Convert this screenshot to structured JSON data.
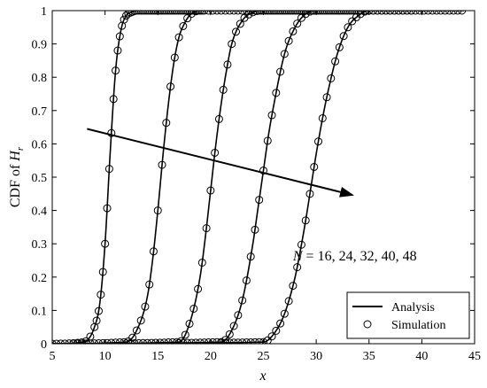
{
  "chart_data": {
    "type": "line",
    "title": "",
    "xlabel": "x",
    "ylabel_parts": {
      "prefix": "CDF of ",
      "var": "H",
      "sub": "r"
    },
    "xlim": [
      5,
      45
    ],
    "ylim": [
      0,
      1
    ],
    "xticks": [
      5,
      10,
      15,
      20,
      25,
      30,
      35,
      40,
      45
    ],
    "yticks": [
      0,
      0.1,
      0.2,
      0.3,
      0.4,
      0.5,
      0.6,
      0.7,
      0.8,
      0.9,
      1
    ],
    "ytick_labels": [
      "0",
      "0.1",
      "0.2",
      "0.3",
      "0.4",
      "0.5",
      "0.6",
      "0.7",
      "0.8",
      "0.9",
      "1"
    ],
    "grid": false,
    "legend": {
      "position": "bottom-right",
      "entries": [
        {
          "label": "Analysis",
          "marker": "line"
        },
        {
          "label": "Simulation",
          "marker": "circle"
        }
      ]
    },
    "annotation": {
      "text_parts": {
        "var": "N",
        "rest": " = 16, 24, 32, 40, 48"
      },
      "arrow_from": [
        8.3,
        0.645
      ],
      "arrow_to": [
        33.6,
        0.445
      ],
      "text_at": [
        27.8,
        0.25
      ]
    },
    "series": [
      {
        "x": [
          5,
          8,
          9,
          9.5,
          10,
          10.5,
          11,
          11.5,
          12,
          12.5,
          13,
          14,
          15,
          18
        ],
        "y": [
          0,
          0.005,
          0.05,
          0.12,
          0.3,
          0.58,
          0.82,
          0.94,
          0.985,
          0.995,
          1,
          1,
          1,
          1
        ],
        "sim_x": [
          5,
          5.4,
          5.8,
          6.2,
          6.6,
          7,
          7.4,
          7.8,
          8.2,
          8.6,
          9,
          9.2,
          9.4,
          9.6,
          9.8,
          10,
          10.2,
          10.4,
          10.6,
          10.8,
          11,
          11.2,
          11.4,
          11.6,
          11.8,
          12,
          12.2,
          12.4,
          12.6,
          12.8,
          13,
          13.2,
          13.4,
          13.6,
          13.8,
          14,
          14.2,
          14.4,
          14.6,
          14.8,
          15,
          15.2,
          15.4,
          15.6,
          15.8,
          16,
          16.2,
          16.4,
          16.6,
          16.8,
          17,
          17.2,
          17.4,
          17.6,
          17.8,
          18,
          18.2,
          18.4,
          18.6,
          18.8,
          19,
          19.2
        ]
      },
      {
        "x": [
          5,
          12,
          13,
          14,
          14.5,
          15,
          15.5,
          16,
          16.5,
          17,
          17.5,
          18,
          19,
          20,
          30
        ],
        "y": [
          0,
          0.005,
          0.04,
          0.14,
          0.25,
          0.4,
          0.57,
          0.72,
          0.84,
          0.92,
          0.96,
          0.985,
          1,
          1,
          1
        ],
        "sim_x": [
          7,
          7.4,
          7.8,
          8.2,
          8.6,
          9,
          9.4,
          9.8,
          10.2,
          10.6,
          11,
          11.4,
          11.8,
          12.2,
          12.6,
          13,
          13.4,
          13.8,
          14.2,
          14.6,
          15,
          15.4,
          15.8,
          16.2,
          16.6,
          17,
          17.4,
          17.8,
          18.2,
          18.6,
          19,
          19.4,
          19.8,
          20.2,
          20.6,
          21,
          21.4,
          21.8,
          22.2,
          22.6,
          23,
          23.4,
          23.8,
          24.2,
          24.6,
          25,
          25.4,
          25.8,
          26.2,
          26.6,
          27,
          27.4,
          27.8,
          28.2,
          28.6,
          29
        ]
      },
      {
        "x": [
          5,
          17,
          18,
          19,
          19.5,
          20,
          20.5,
          21,
          21.5,
          22,
          23,
          24,
          25,
          30
        ],
        "y": [
          0,
          0.005,
          0.06,
          0.2,
          0.32,
          0.46,
          0.6,
          0.72,
          0.82,
          0.9,
          0.97,
          0.995,
          1,
          1
        ],
        "sim_x": [
          12,
          12.4,
          12.8,
          13.2,
          13.6,
          14,
          14.4,
          14.8,
          15.2,
          15.6,
          16,
          16.4,
          16.8,
          17.2,
          17.6,
          18,
          18.4,
          18.8,
          19.2,
          19.6,
          20,
          20.4,
          20.8,
          21.2,
          21.6,
          22,
          22.4,
          22.8,
          23.2,
          23.6,
          24,
          24.4,
          24.8,
          25.2,
          25.6,
          26,
          26.4,
          26.8,
          27.2,
          27.6,
          28,
          28.4,
          28.8,
          29.2,
          29.6,
          30,
          30.4,
          30.8,
          31.2,
          31.6,
          32,
          32.4,
          32.8,
          33.2,
          33.6,
          34
        ]
      },
      {
        "x": [
          5,
          21,
          22,
          23,
          24,
          24.5,
          25,
          25.5,
          26,
          27,
          28,
          29,
          30,
          35
        ],
        "y": [
          0,
          0.005,
          0.04,
          0.13,
          0.3,
          0.41,
          0.52,
          0.63,
          0.72,
          0.87,
          0.95,
          0.99,
          1,
          1
        ],
        "sim_x": [
          17,
          17.4,
          17.8,
          18.2,
          18.6,
          19,
          19.4,
          19.8,
          20.2,
          20.6,
          21,
          21.4,
          21.8,
          22.2,
          22.6,
          23,
          23.4,
          23.8,
          24.2,
          24.6,
          25,
          25.4,
          25.8,
          26.2,
          26.6,
          27,
          27.4,
          27.8,
          28.2,
          28.6,
          29,
          29.4,
          29.8,
          30.2,
          30.6,
          31,
          31.4,
          31.8,
          32.2,
          32.6,
          33,
          33.4,
          33.8,
          34.2,
          34.6,
          35,
          35.4,
          35.8,
          36.2,
          36.6,
          37,
          37.4,
          37.8,
          38.2,
          38.6,
          39
        ]
      },
      {
        "x": [
          5,
          25,
          26,
          27,
          28,
          28.5,
          29,
          29.5,
          30,
          30.5,
          31,
          32,
          33,
          34,
          35,
          44
        ],
        "y": [
          0,
          0.005,
          0.03,
          0.09,
          0.2,
          0.28,
          0.37,
          0.47,
          0.57,
          0.66,
          0.74,
          0.87,
          0.95,
          0.985,
          1,
          1
        ],
        "sim_x": [
          21,
          21.4,
          21.8,
          22.2,
          22.6,
          23,
          23.4,
          23.8,
          24.2,
          24.6,
          25,
          25.4,
          25.8,
          26.2,
          26.6,
          27,
          27.4,
          27.8,
          28.2,
          28.6,
          29,
          29.4,
          29.8,
          30.2,
          30.6,
          31,
          31.4,
          31.8,
          32.2,
          32.6,
          33,
          33.4,
          33.8,
          34.2,
          34.6,
          35,
          35.4,
          35.8,
          36.2,
          36.6,
          37,
          37.4,
          37.8,
          38.2,
          38.6,
          39,
          39.4,
          39.8,
          40.2,
          40.6,
          41,
          41.4,
          41.8,
          42.2,
          42.6,
          43,
          43.4,
          43.8
        ]
      }
    ]
  }
}
